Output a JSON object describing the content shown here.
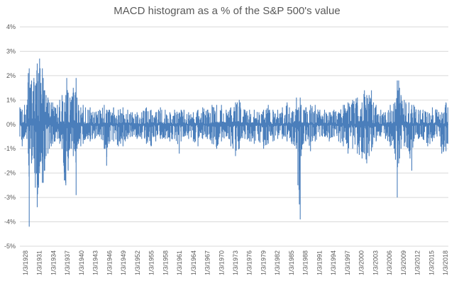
{
  "chart_data": {
    "type": "line",
    "title": "MACD histogram as a % of the S&P 500's value",
    "xlabel": "",
    "ylabel": "",
    "ylim": [
      -5,
      4
    ],
    "y_ticks": [
      "4%",
      "3%",
      "2%",
      "1%",
      "0%",
      "-1%",
      "-2%",
      "-3%",
      "-4%",
      "-5%"
    ],
    "x_ticks": [
      "1/3/1928",
      "1/3/1931",
      "1/3/1934",
      "1/3/1937",
      "1/3/1940",
      "1/3/1943",
      "1/3/1946",
      "1/3/1949",
      "1/3/1952",
      "1/3/1955",
      "1/3/1958",
      "1/3/1961",
      "1/3/1964",
      "1/3/1967",
      "1/3/1970",
      "1/3/1973",
      "1/3/1976",
      "1/3/1979",
      "1/3/1982",
      "1/3/1985",
      "1/3/1988",
      "1/3/1991",
      "1/3/1994",
      "1/3/1997",
      "1/3/2000",
      "1/3/2003",
      "1/3/2006",
      "1/3/2009",
      "1/3/2012",
      "1/3/2015",
      "1/3/2018"
    ],
    "grid": "horizontal",
    "series_color": "#4a7ebb",
    "series": [
      {
        "x": [
          1928.0,
          1928.5,
          1929.0,
          1929.5,
          1929.8,
          1930.0,
          1930.2,
          1930.5,
          1931.0,
          1931.3,
          1931.7,
          1932.0,
          1932.2,
          1932.5,
          1932.8,
          1933.0,
          1933.3,
          1933.6,
          1934.0,
          1934.3,
          1934.7,
          1935.0,
          1935.5,
          1936.0,
          1936.5,
          1937.0,
          1937.5,
          1937.8,
          1938.0,
          1938.3,
          1938.7,
          1939.0,
          1939.4,
          1939.8,
          1940.0,
          1940.2,
          1940.5,
          1941.0,
          1941.5,
          1942.0,
          1942.5,
          1943.0,
          1944.0,
          1945.0,
          1946.0,
          1946.5,
          1947.0,
          1948.0,
          1949.0,
          1950.0,
          1951.0,
          1952.0,
          1953.0,
          1954.0,
          1955.0,
          1956.0,
          1957.0,
          1958.0,
          1959.0,
          1960.0,
          1961.0,
          1962.0,
          1962.4,
          1963.0,
          1964.0,
          1965.0,
          1966.0,
          1967.0,
          1968.0,
          1969.0,
          1970.0,
          1971.0,
          1972.0,
          1973.0,
          1974.0,
          1974.8,
          1975.0,
          1976.0,
          1977.0,
          1978.0,
          1979.0,
          1980.0,
          1981.0,
          1982.0,
          1983.0,
          1984.0,
          1985.0,
          1986.0,
          1987.0,
          1987.3,
          1987.8,
          1988.0,
          1988.5,
          1989.0,
          1990.0,
          1991.0,
          1992.0,
          1993.0,
          1994.0,
          1995.0,
          1996.0,
          1997.0,
          1998.0,
          1999.0,
          2000.0,
          2001.0,
          2001.5,
          2002.0,
          2002.5,
          2003.0,
          2004.0,
          2005.0,
          2006.0,
          2007.0,
          2008.0,
          2008.5,
          2008.8,
          2009.0,
          2009.3,
          2010.0,
          2011.0,
          2011.6,
          2012.0,
          2013.0,
          2014.0,
          2015.0,
          2016.0,
          2017.0,
          2018.0,
          2018.9,
          2019.3
        ],
        "high": [
          0.7,
          0.6,
          0.8,
          0.8,
          2.1,
          2.3,
          1.5,
          1.8,
          1.9,
          1.6,
          2.5,
          2.1,
          2.7,
          1.7,
          2.3,
          1.9,
          1.4,
          1.2,
          1.1,
          0.9,
          0.9,
          0.9,
          0.7,
          0.8,
          1.0,
          1.2,
          0.9,
          1.2,
          1.9,
          1.3,
          1.1,
          1.0,
          1.5,
          1.2,
          1.9,
          1.1,
          0.8,
          0.7,
          0.8,
          0.7,
          0.6,
          0.7,
          0.5,
          0.6,
          0.8,
          0.6,
          0.6,
          0.7,
          0.6,
          0.7,
          0.6,
          0.5,
          0.5,
          0.5,
          0.7,
          0.6,
          0.5,
          0.7,
          0.6,
          0.5,
          0.6,
          0.5,
          0.6,
          0.6,
          0.5,
          0.5,
          0.6,
          0.7,
          0.6,
          0.8,
          0.8,
          0.8,
          0.6,
          0.7,
          0.9,
          1.0,
          0.9,
          0.6,
          0.6,
          0.6,
          0.5,
          0.6,
          0.8,
          0.6,
          0.6,
          0.7,
          0.9,
          0.5,
          1.1,
          0.6,
          1.1,
          0.8,
          0.6,
          0.7,
          0.8,
          0.8,
          0.6,
          0.6,
          0.5,
          0.6,
          0.5,
          0.8,
          0.9,
          1.0,
          1.1,
          0.9,
          1.4,
          1.2,
          1.2,
          1.4,
          0.8,
          0.6,
          0.5,
          0.8,
          0.9,
          1.8,
          1.8,
          1.5,
          1.2,
          1.0,
          0.9,
          0.8,
          0.8,
          0.6,
          0.6,
          0.5,
          0.7,
          0.6,
          0.5,
          0.9,
          0.7
        ],
        "low": [
          -0.5,
          -0.9,
          -0.5,
          -0.6,
          -1.2,
          -4.2,
          -1.0,
          -1.6,
          -1.4,
          -2.6,
          -3.4,
          -2.6,
          -2.0,
          -1.5,
          -2.4,
          -2.4,
          -1.9,
          -1.3,
          -1.2,
          -1.0,
          -0.9,
          -0.8,
          -0.7,
          -0.6,
          -0.8,
          -1.0,
          -2.3,
          -2.5,
          -1.1,
          -1.9,
          -1.0,
          -1.0,
          -1.3,
          -1.1,
          -2.9,
          -1.0,
          -0.8,
          -0.9,
          -0.8,
          -0.6,
          -0.6,
          -0.7,
          -0.6,
          -0.5,
          -1.0,
          -1.7,
          -0.8,
          -0.7,
          -0.9,
          -0.9,
          -0.6,
          -0.5,
          -0.6,
          -0.6,
          -0.8,
          -0.9,
          -0.7,
          -0.6,
          -0.6,
          -0.7,
          -0.6,
          -1.2,
          -0.7,
          -0.5,
          -0.6,
          -0.7,
          -0.9,
          -0.6,
          -0.6,
          -0.8,
          -1.0,
          -0.7,
          -0.5,
          -0.9,
          -1.3,
          -1.0,
          -0.6,
          -0.6,
          -0.7,
          -0.8,
          -0.7,
          -1.0,
          -0.8,
          -0.7,
          -0.6,
          -0.6,
          -0.7,
          -0.8,
          -1.0,
          -2.5,
          -3.9,
          -1.3,
          -0.8,
          -0.7,
          -1.1,
          -0.7,
          -0.5,
          -0.5,
          -0.7,
          -0.5,
          -0.7,
          -0.9,
          -1.2,
          -1.0,
          -1.2,
          -1.4,
          -1.2,
          -1.6,
          -1.3,
          -1.1,
          -0.7,
          -0.5,
          -0.6,
          -0.9,
          -1.2,
          -3.0,
          -1.6,
          -1.4,
          -1.0,
          -0.9,
          -1.1,
          -1.9,
          -0.7,
          -0.6,
          -0.6,
          -0.9,
          -0.7,
          -0.5,
          -1.2,
          -1.1,
          -0.8
        ]
      }
    ]
  }
}
